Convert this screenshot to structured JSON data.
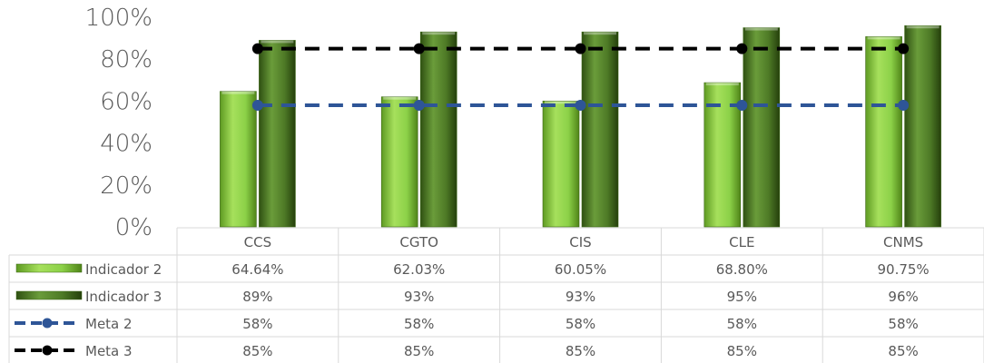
{
  "chart_data": {
    "type": "bar",
    "categories": [
      "CCS",
      "CGTO",
      "CIS",
      "CLE",
      "CNMS"
    ],
    "ylim": [
      0,
      100
    ],
    "y_tick_labels": [
      "0%",
      "20%",
      "40%",
      "60%",
      "80%",
      "100%"
    ],
    "grid": false,
    "legend": "data-table",
    "series": [
      {
        "name": "Indicador 2",
        "kind": "bar",
        "color": "#8cd148",
        "values": [
          64.64,
          62.03,
          60.05,
          68.8,
          90.75
        ],
        "labels": [
          "64.64%",
          "62.03%",
          "60.05%",
          "68.80%",
          "90.75%"
        ]
      },
      {
        "name": "Indicador 3",
        "kind": "bar",
        "color": "#4e7a26",
        "values": [
          89,
          93,
          93,
          95,
          96
        ],
        "labels": [
          "89%",
          "93%",
          "93%",
          "95%",
          "96%"
        ]
      },
      {
        "name": "Meta 2",
        "kind": "line",
        "color": "#2e5597",
        "values": [
          58,
          58,
          58,
          58,
          58
        ],
        "labels": [
          "58%",
          "58%",
          "58%",
          "58%",
          "58%"
        ]
      },
      {
        "name": "Meta 3",
        "kind": "line",
        "color": "#000000",
        "values": [
          85,
          85,
          85,
          85,
          85
        ],
        "labels": [
          "85%",
          "85%",
          "85%",
          "85%",
          "85%"
        ]
      }
    ]
  }
}
